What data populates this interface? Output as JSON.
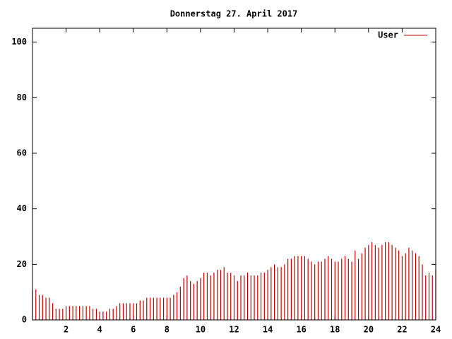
{
  "chart_data": {
    "type": "impulses",
    "title": "Donnerstag 27. April 2017",
    "x": [
      0,
      0.2,
      0.4,
      0.6,
      0.8,
      1,
      1.2,
      1.4,
      1.6,
      1.8,
      2,
      2.2,
      2.4,
      2.6,
      2.8,
      3,
      3.2,
      3.4,
      3.6,
      3.8,
      4,
      4.2,
      4.4,
      4.6,
      4.8,
      5,
      5.2,
      5.4,
      5.6,
      5.8,
      6,
      6.2,
      6.4,
      6.6,
      6.8,
      7,
      7.2,
      7.4,
      7.6,
      7.8,
      8,
      8.2,
      8.4,
      8.6,
      8.8,
      9,
      9.2,
      9.4,
      9.6,
      9.8,
      10,
      10.2,
      10.4,
      10.6,
      10.8,
      11,
      11.2,
      11.4,
      11.6,
      11.8,
      12,
      12.2,
      12.4,
      12.6,
      12.8,
      13,
      13.2,
      13.4,
      13.6,
      13.8,
      14,
      14.2,
      14.4,
      14.6,
      14.8,
      15,
      15.2,
      15.4,
      15.6,
      15.8,
      16,
      16.2,
      16.4,
      16.6,
      16.8,
      17,
      17.2,
      17.4,
      17.6,
      17.8,
      18,
      18.2,
      18.4,
      18.6,
      18.8,
      19,
      19.2,
      19.4,
      19.6,
      19.8,
      20,
      20.2,
      20.4,
      20.6,
      20.8,
      21,
      21.2,
      21.4,
      21.6,
      21.8,
      22,
      22.2,
      22.4,
      22.6,
      22.8,
      23,
      23.2,
      23.4,
      23.6,
      23.8,
      24
    ],
    "series": [
      {
        "name": "User",
        "color": "#c00000",
        "values": [
          11,
          11,
          9,
          9,
          8,
          8,
          6,
          4,
          4,
          4,
          5,
          5,
          5,
          5,
          5,
          5,
          5,
          5,
          4,
          4,
          3,
          3,
          3,
          4,
          4,
          5,
          6,
          6,
          6,
          6,
          6,
          6,
          7,
          7,
          8,
          8,
          8,
          8,
          8,
          8,
          8,
          8,
          9,
          10,
          12,
          15,
          16,
          14,
          13,
          14,
          15,
          17,
          17,
          16,
          17,
          18,
          18,
          19,
          17,
          17,
          16,
          14,
          16,
          16,
          17,
          16,
          16,
          16,
          17,
          17,
          18,
          19,
          20,
          19,
          19,
          20,
          22,
          22,
          23,
          23,
          23,
          23,
          22,
          21,
          20,
          21,
          21,
          22,
          23,
          22,
          21,
          21,
          22,
          23,
          22,
          21,
          25,
          22,
          24,
          26,
          27,
          28,
          27,
          26,
          27,
          28,
          28,
          27,
          26,
          25,
          23,
          24,
          26,
          25,
          24,
          23,
          20,
          16,
          17,
          16,
          18
        ]
      }
    ],
    "xlim": [
      0,
      24
    ],
    "xticks": [
      2,
      4,
      6,
      8,
      10,
      12,
      14,
      16,
      18,
      20,
      22,
      24
    ],
    "ylim": [
      0,
      105
    ],
    "yticks": [
      0,
      20,
      40,
      60,
      80,
      100
    ],
    "legend": "top right"
  }
}
